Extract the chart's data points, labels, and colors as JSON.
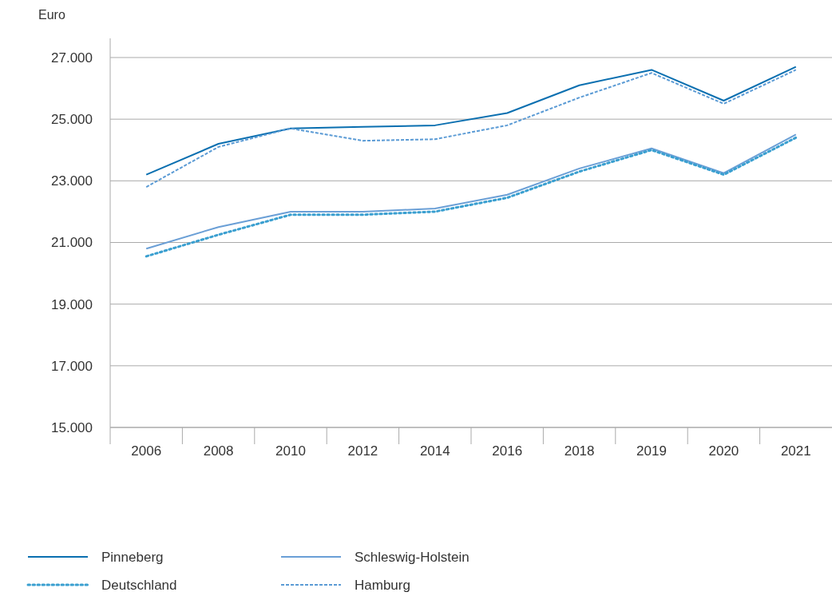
{
  "chart_data": {
    "type": "line",
    "ylabel": "Euro",
    "categories": [
      "2006",
      "2008",
      "2010",
      "2012",
      "2014",
      "2016",
      "2018",
      "2019",
      "2020",
      "2021"
    ],
    "ylim": [
      15000,
      27000
    ],
    "yticks": [
      {
        "value": 15000,
        "label": "15.000"
      },
      {
        "value": 17000,
        "label": "17.000"
      },
      {
        "value": 19000,
        "label": "19.000"
      },
      {
        "value": 21000,
        "label": "21.000"
      },
      {
        "value": 23000,
        "label": "23.000"
      },
      {
        "value": 25000,
        "label": "25.000"
      },
      {
        "value": 27000,
        "label": "27.000"
      }
    ],
    "grid": "y",
    "legend": "bottom",
    "marker": "none",
    "series": [
      {
        "name": "Pinneberg",
        "color": "#0a6fb0",
        "line_style": "solid",
        "values": [
          23200,
          24200,
          24700,
          24750,
          24800,
          25200,
          26100,
          26600,
          25600,
          26700
        ]
      },
      {
        "name": "Schleswig-Holstein",
        "color": "#6a9fd6",
        "line_style": "solid",
        "values": [
          20800,
          21500,
          22000,
          22000,
          22100,
          22550,
          23400,
          24050,
          23250,
          24500
        ]
      },
      {
        "name": "Deutschland",
        "color": "#3a9fd0",
        "line_style": "dotted",
        "values": [
          20550,
          21250,
          21900,
          21900,
          22000,
          22450,
          23300,
          24000,
          23200,
          24400
        ]
      },
      {
        "name": "Hamburg",
        "color": "#5b9bd5",
        "line_style": "dashed",
        "values": [
          22800,
          24100,
          24700,
          24300,
          24350,
          24800,
          25700,
          26500,
          25500,
          26600
        ]
      }
    ]
  }
}
